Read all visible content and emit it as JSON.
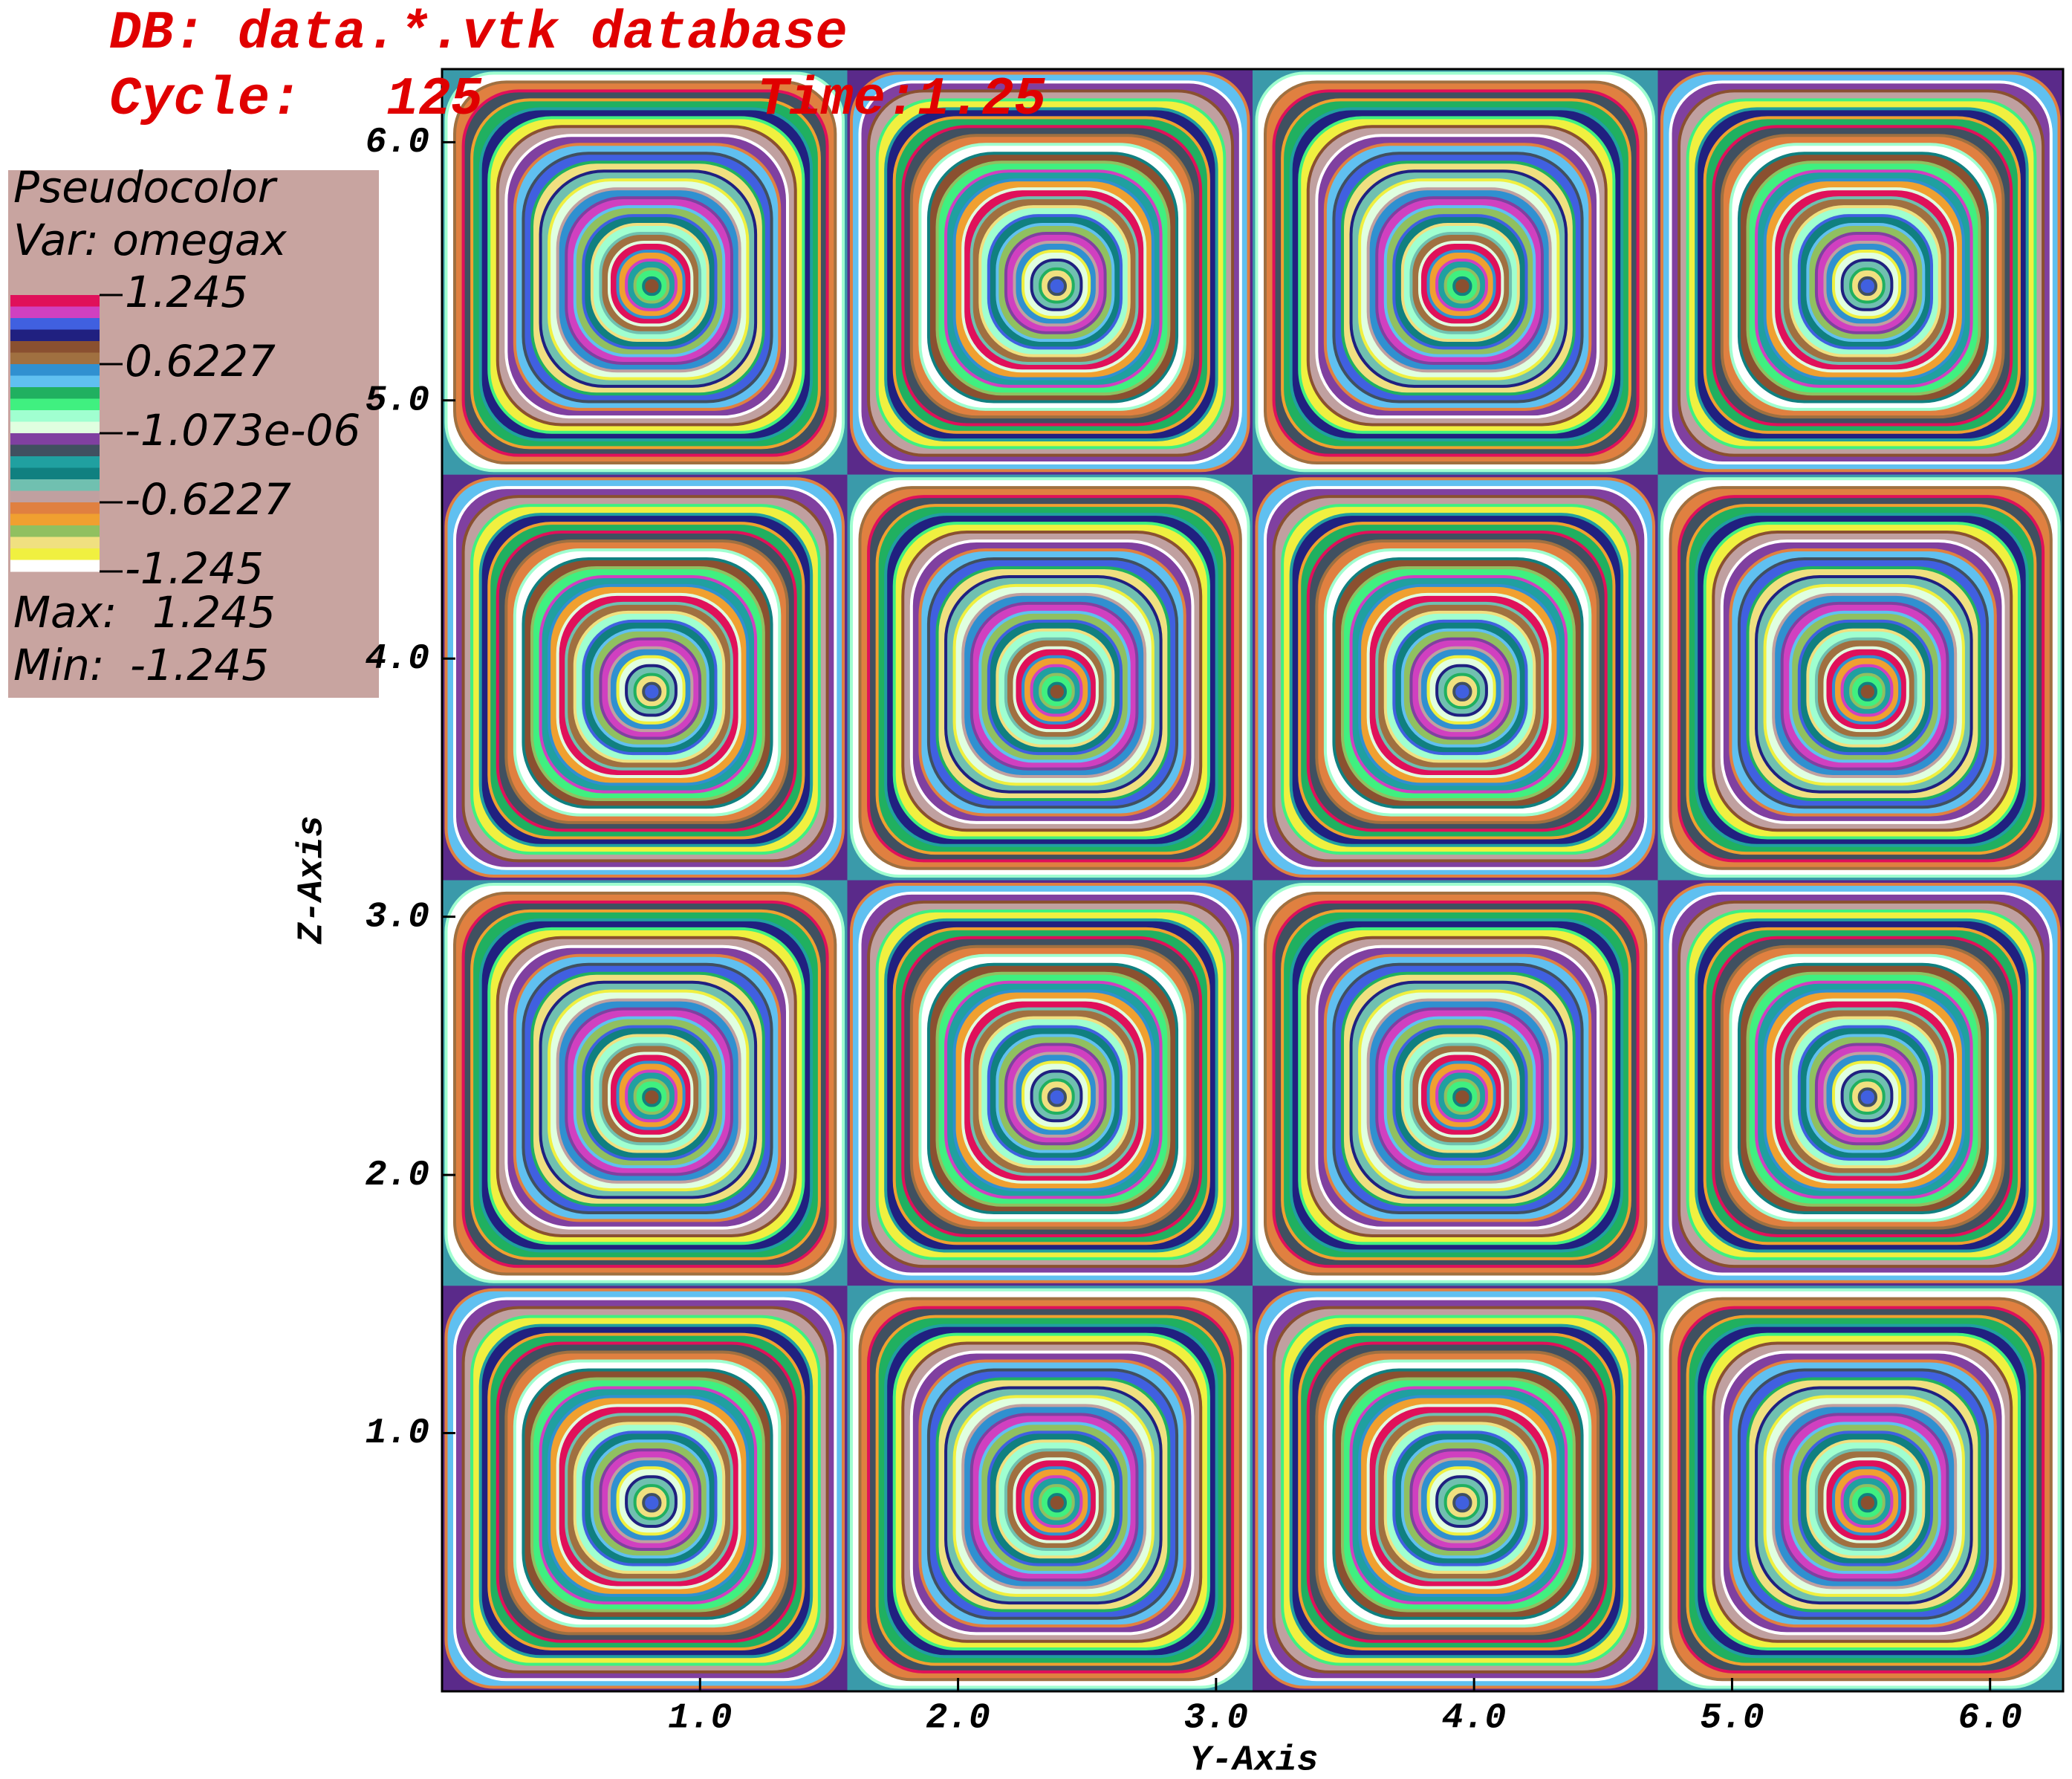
{
  "chart_data": {
    "type": "pseudocolor",
    "db_line": "DB: data.*.vtk database",
    "cycle_label": "Cycle:",
    "cycle": 125,
    "time_label": "Time:",
    "time": 1.25,
    "xlabel": "Y-Axis",
    "ylabel": "Z-Axis",
    "xlim": [
      0,
      6.283
    ],
    "ylim": [
      0,
      6.283
    ],
    "xticks": [
      {
        "value": 1,
        "label": "1.0"
      },
      {
        "value": 2,
        "label": "2.0"
      },
      {
        "value": 3,
        "label": "3.0"
      },
      {
        "value": 4,
        "label": "4.0"
      },
      {
        "value": 5,
        "label": "5.0"
      },
      {
        "value": 6,
        "label": "6.0"
      }
    ],
    "yticks": [
      {
        "value": 1,
        "label": "1.0"
      },
      {
        "value": 2,
        "label": "2.0"
      },
      {
        "value": 3,
        "label": "3.0"
      },
      {
        "value": 4,
        "label": "4.0"
      },
      {
        "value": 5,
        "label": "5.0"
      },
      {
        "value": 6,
        "label": "6.0"
      }
    ],
    "legend": {
      "plot_name": "Pseudocolor",
      "variable": "Var: omegax",
      "ticks": [
        1.245,
        0.6227,
        {
          "value": -1.073e-06,
          "label": "-1.073e-06"
        },
        -0.6227,
        -1.245
      ],
      "max_label": "Max:",
      "max": 1.245,
      "min_label": "Min:",
      "min": -1.245
    },
    "colormap": [
      "#e0105a",
      "#d040c0",
      "#4060e0",
      "#202080",
      "#8a5030",
      "#a07040",
      "#3090d0",
      "#60c0f0",
      "#20b060",
      "#40f080",
      "#a0ffd0",
      "#e0ffe0",
      "#8040a0",
      "#405060",
      "#20a0a0",
      "#108080",
      "#70c0b0",
      "#c0a0a0",
      "#e08040",
      "#f0a030",
      "#90c060",
      "#f0e080",
      "#f0f040",
      "#ffffff"
    ]
  }
}
